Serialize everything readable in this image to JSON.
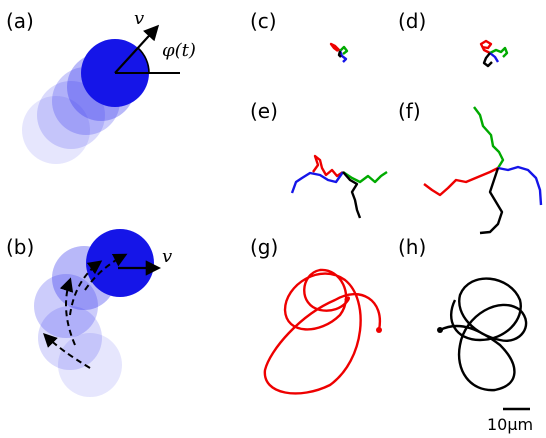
{
  "panels": [
    {
      "label": "(a)"
    },
    {
      "label": "(b)"
    },
    {
      "label": "(c)"
    },
    {
      "label": "(d)"
    },
    {
      "label": "(e)"
    },
    {
      "label": "(f)"
    },
    {
      "label": "(g)"
    },
    {
      "label": "(h)"
    }
  ],
  "annotations": {
    "a_velocity": "v",
    "a_angle": "φ(t)",
    "b_velocity": "v"
  },
  "scale_bar": "10μm"
}
